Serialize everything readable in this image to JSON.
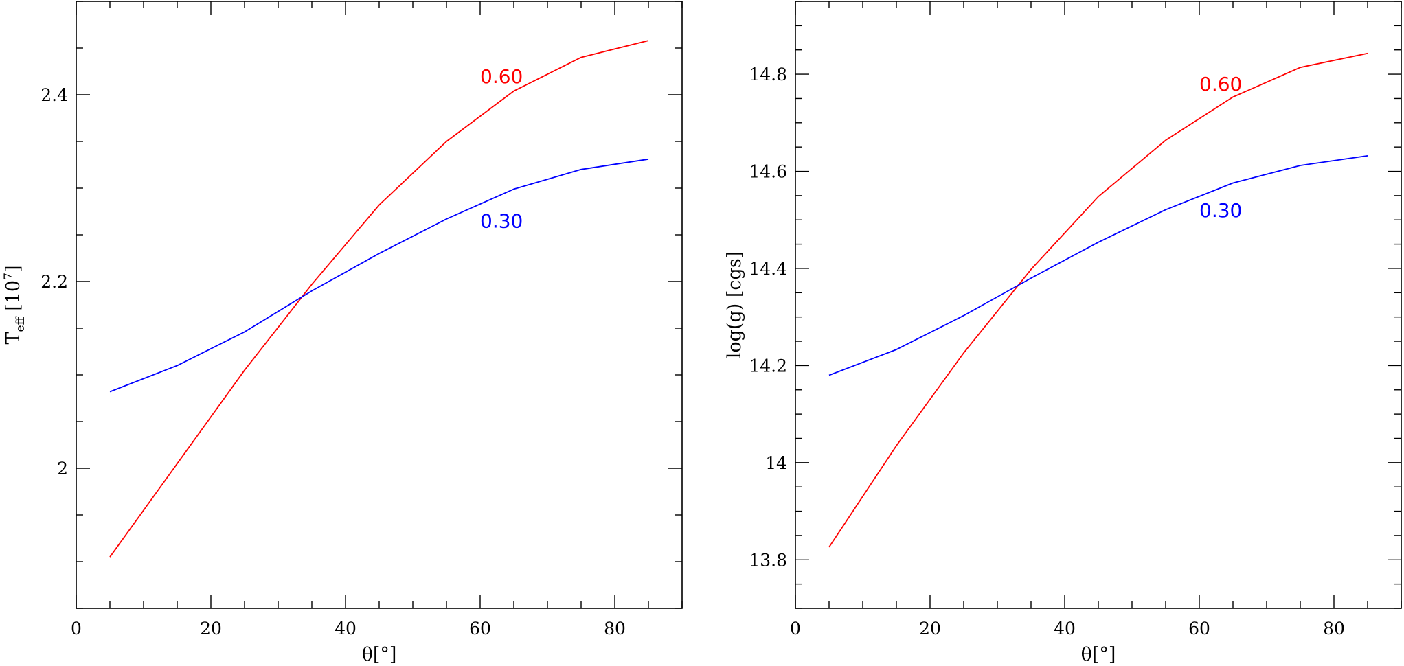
{
  "chart_data": [
    {
      "type": "line",
      "xlabel": "θ[°]",
      "ylabel": "T_eff [10^7]",
      "ylabel_parts": {
        "main": "T",
        "sub": "eff",
        "bracket_open": "[10",
        "sup": "7",
        "bracket_close": "]"
      },
      "xlim": [
        0,
        90
      ],
      "ylim": [
        1.85,
        2.5
      ],
      "x_ticks": [
        0,
        20,
        40,
        60,
        80
      ],
      "x_tick_labels": [
        "0",
        "20",
        "40",
        "60",
        "80"
      ],
      "y_ticks": [
        2.0,
        2.2,
        2.4
      ],
      "y_tick_labels": [
        "2",
        "2.2",
        "2.4"
      ],
      "grid": false,
      "x": [
        5,
        15,
        25,
        35,
        45,
        55,
        65,
        75,
        85
      ],
      "series": [
        {
          "name": "0.60",
          "color": "#ff0000",
          "values": [
            1.905,
            2.005,
            2.105,
            2.197,
            2.282,
            2.35,
            2.404,
            2.44,
            2.458
          ]
        },
        {
          "name": "0.30",
          "color": "#0000ff",
          "values": [
            2.082,
            2.11,
            2.146,
            2.19,
            2.23,
            2.267,
            2.299,
            2.32,
            2.331
          ]
        }
      ],
      "annotations": [
        {
          "text": "0.60",
          "color": "#ff0000",
          "x": 60,
          "y": 2.42
        },
        {
          "text": "0.30",
          "color": "#0000ff",
          "x": 60,
          "y": 2.265
        }
      ]
    },
    {
      "type": "line",
      "xlabel": "θ[°]",
      "ylabel": "log(g)  [cgs]",
      "xlim": [
        0,
        90
      ],
      "ylim": [
        13.7,
        14.95
      ],
      "x_ticks": [
        0,
        20,
        40,
        60,
        80
      ],
      "x_tick_labels": [
        "0",
        "20",
        "40",
        "60",
        "80"
      ],
      "y_ticks": [
        13.8,
        14.0,
        14.2,
        14.4,
        14.6,
        14.8
      ],
      "y_tick_labels": [
        "13.8",
        "14",
        "14.2",
        "14.4",
        "14.6",
        "14.8"
      ],
      "grid": false,
      "x": [
        5,
        15,
        25,
        35,
        45,
        55,
        65,
        75,
        85
      ],
      "series": [
        {
          "name": "0.60",
          "color": "#ff0000",
          "values": [
            13.826,
            14.035,
            14.226,
            14.398,
            14.548,
            14.664,
            14.753,
            14.814,
            14.843
          ]
        },
        {
          "name": "0.30",
          "color": "#0000ff",
          "values": [
            14.18,
            14.233,
            14.303,
            14.38,
            14.454,
            14.521,
            14.576,
            14.612,
            14.632
          ]
        }
      ],
      "annotations": [
        {
          "text": "0.60",
          "color": "#ff0000",
          "x": 60,
          "y": 14.78
        },
        {
          "text": "0.30",
          "color": "#0000ff",
          "x": 60,
          "y": 14.52
        }
      ]
    }
  ]
}
